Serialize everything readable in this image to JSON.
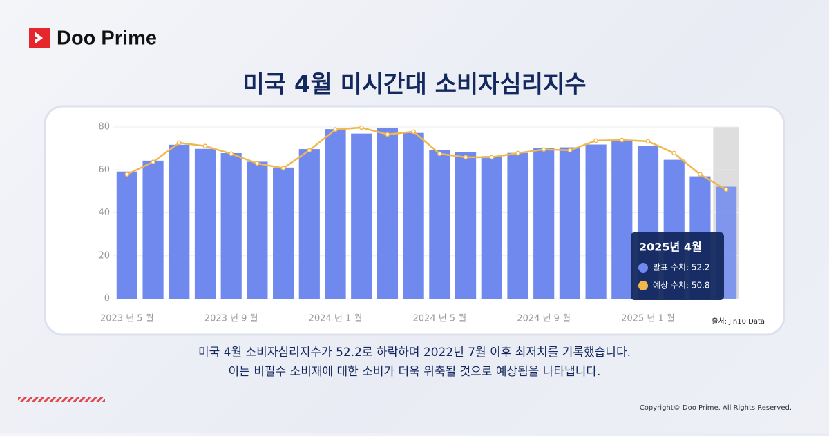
{
  "brand": "Doo Prime",
  "chart_data": {
    "type": "bar-line",
    "title": "미국 4월 미시간대 소비자심리지수",
    "categories": [
      "2023 년 5 월",
      null,
      null,
      null,
      "2023 년 9 월",
      null,
      null,
      null,
      "2024 년 1 월",
      null,
      null,
      null,
      "2024 년 5 월",
      null,
      null,
      null,
      "2024 년 9 월",
      null,
      null,
      null,
      "2025 년 1 월",
      null,
      null,
      null
    ],
    "series": [
      {
        "color": "#7089ef",
        "values": [
          59.2,
          64.3,
          71.7,
          69.8,
          67.8,
          63.8,
          61.1,
          69.7,
          79.0,
          76.9,
          79.4,
          77.2,
          69.1,
          68.2,
          66.4,
          67.9,
          70.1,
          70.5,
          71.8,
          74.0,
          71.1,
          64.7,
          57.0,
          52.2
        ]
      },
      {
        "color": "#f0b84c",
        "values": [
          57.9,
          63.7,
          72.6,
          71.1,
          67.5,
          63.0,
          60.8,
          69.1,
          78.8,
          79.7,
          76.5,
          77.8,
          67.5,
          65.9,
          65.9,
          67.8,
          69.5,
          69.1,
          73.6,
          73.9,
          73.3,
          67.8,
          57.9,
          50.8
        ]
      }
    ],
    "ylim": [
      0,
      80
    ],
    "yticks": [
      0,
      20,
      40,
      60,
      80
    ],
    "grid": true,
    "source": "출처:  Jin10 Data",
    "tooltip": {
      "title": "2025년 4월",
      "items": [
        "발표 수치: 52.2",
        "예상 수치: 50.8"
      ]
    }
  },
  "description": [
    "미국 4월 소비자심리지수가 52.2로 하락하며 2022년 7월 이후 최저치를 기록했습니다.",
    "이는 비필수 소비재에 대한 소비가 더욱 위축될 것으로 예상됨을 나타냅니다."
  ],
  "copyright": "Copyright© Doo Prime. All Rights Reserved."
}
